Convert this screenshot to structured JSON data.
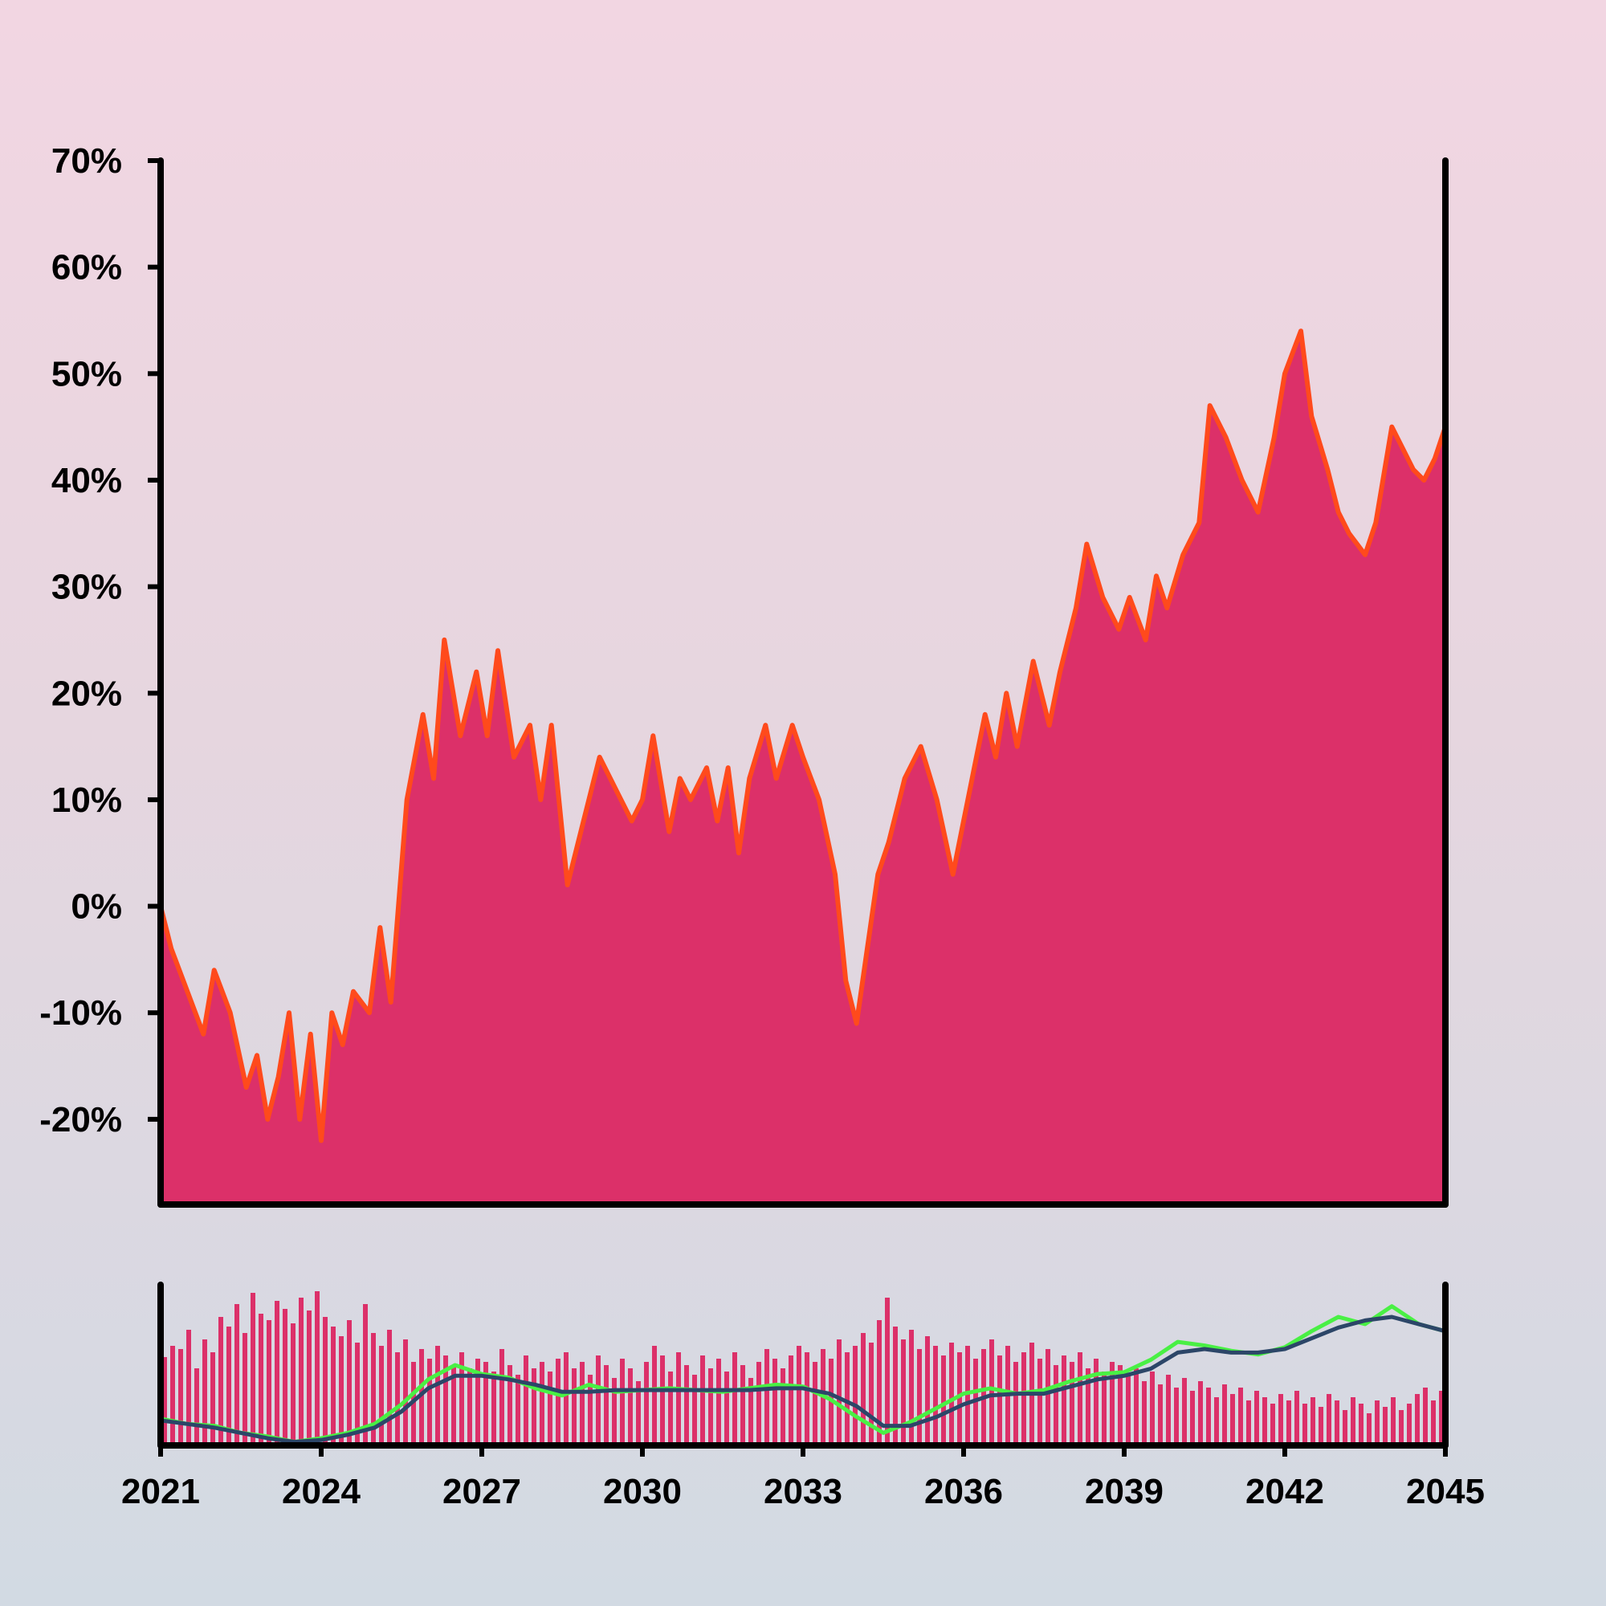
{
  "colors": {
    "area_fill": "#dc3069",
    "price_line": "#ff4a1c",
    "volume_bar": "#dc3069",
    "ma_fast": "#49f044",
    "ma_slow": "#2c4668",
    "axis": "#000000"
  },
  "chart_data": [
    {
      "type": "area",
      "panel": "main",
      "title": "",
      "xlabel": "",
      "ylabel": "",
      "ylim": [
        -28,
        70
      ],
      "xlim": [
        2021,
        2045
      ],
      "y_ticks": [
        -20,
        -10,
        0,
        10,
        20,
        30,
        40,
        50,
        60,
        70
      ],
      "y_tick_labels": [
        "-20%",
        "-10%",
        "0%",
        "10%",
        "20%",
        "30%",
        "40%",
        "50%",
        "60%",
        "70%"
      ],
      "grid": false,
      "series": [
        {
          "x": [
            2021.0,
            2021.2,
            2021.5,
            2021.8,
            2022.0,
            2022.3,
            2022.6,
            2022.8,
            2023.0,
            2023.2,
            2023.4,
            2023.6,
            2023.8,
            2024.0,
            2024.2,
            2024.4,
            2024.6,
            2024.9,
            2025.1,
            2025.3,
            2025.6,
            2025.9,
            2026.1,
            2026.3,
            2026.6,
            2026.9,
            2027.1,
            2027.3,
            2027.6,
            2027.9,
            2028.1,
            2028.3,
            2028.6,
            2028.9,
            2029.2,
            2029.5,
            2029.8,
            2030.0,
            2030.2,
            2030.5,
            2030.7,
            2030.9,
            2031.2,
            2031.4,
            2031.6,
            2031.8,
            2032.0,
            2032.3,
            2032.5,
            2032.8,
            2033.0,
            2033.3,
            2033.6,
            2033.8,
            2034.0,
            2034.2,
            2034.4,
            2034.6,
            2034.9,
            2035.2,
            2035.5,
            2035.8,
            2036.0,
            2036.2,
            2036.4,
            2036.6,
            2036.8,
            2037.0,
            2037.3,
            2037.6,
            2037.8,
            2038.1,
            2038.3,
            2038.6,
            2038.9,
            2039.1,
            2039.4,
            2039.6,
            2039.8,
            2040.1,
            2040.4,
            2040.6,
            2040.9,
            2041.2,
            2041.5,
            2041.8,
            2042.0,
            2042.3,
            2042.5,
            2042.8,
            2043.0,
            2043.2,
            2043.5,
            2043.7,
            2044.0,
            2044.2,
            2044.4,
            2044.6,
            2044.8,
            2045.0
          ],
          "y": [
            0,
            -4,
            -8,
            -12,
            -6,
            -10,
            -17,
            -14,
            -20,
            -16,
            -10,
            -20,
            -12,
            -22,
            -10,
            -13,
            -8,
            -10,
            -2,
            -9,
            10,
            18,
            12,
            25,
            16,
            22,
            16,
            24,
            14,
            17,
            10,
            17,
            2,
            8,
            14,
            11,
            8,
            10,
            16,
            7,
            12,
            10,
            13,
            8,
            13,
            5,
            12,
            17,
            12,
            17,
            14,
            10,
            3,
            -7,
            -11,
            -4,
            3,
            6,
            12,
            15,
            10,
            3,
            8,
            13,
            18,
            14,
            20,
            15,
            23,
            17,
            22,
            28,
            34,
            29,
            26,
            29,
            25,
            31,
            28,
            33,
            36,
            47,
            44,
            40,
            37,
            44,
            50,
            54,
            46,
            41,
            37,
            35,
            33,
            36,
            45,
            43,
            41,
            40,
            42,
            45
          ]
        }
      ]
    },
    {
      "type": "bar",
      "panel": "volume",
      "title": "",
      "xlabel": "",
      "ylabel": "",
      "xlim": [
        2021,
        2045
      ],
      "x_ticks": [
        2021,
        2024,
        2027,
        2030,
        2033,
        2036,
        2039,
        2042,
        2045
      ],
      "x_tick_labels": [
        "2021",
        "2024",
        "2027",
        "2030",
        "2033",
        "2036",
        "2039",
        "2042",
        "2045"
      ],
      "grid": false,
      "volume": [
        {
          "x": 2021.0,
          "v": 55
        },
        {
          "x": 2021.15,
          "v": 62
        },
        {
          "x": 2021.3,
          "v": 60
        },
        {
          "x": 2021.45,
          "v": 72
        },
        {
          "x": 2021.6,
          "v": 48
        },
        {
          "x": 2021.75,
          "v": 66
        },
        {
          "x": 2021.9,
          "v": 58
        },
        {
          "x": 2022.05,
          "v": 80
        },
        {
          "x": 2022.2,
          "v": 74
        },
        {
          "x": 2022.35,
          "v": 88
        },
        {
          "x": 2022.5,
          "v": 70
        },
        {
          "x": 2022.65,
          "v": 95
        },
        {
          "x": 2022.8,
          "v": 82
        },
        {
          "x": 2022.95,
          "v": 78
        },
        {
          "x": 2023.1,
          "v": 90
        },
        {
          "x": 2023.25,
          "v": 85
        },
        {
          "x": 2023.4,
          "v": 76
        },
        {
          "x": 2023.55,
          "v": 92
        },
        {
          "x": 2023.7,
          "v": 84
        },
        {
          "x": 2023.85,
          "v": 96
        },
        {
          "x": 2024.0,
          "v": 80
        },
        {
          "x": 2024.15,
          "v": 74
        },
        {
          "x": 2024.3,
          "v": 68
        },
        {
          "x": 2024.45,
          "v": 78
        },
        {
          "x": 2024.6,
          "v": 64
        },
        {
          "x": 2024.75,
          "v": 88
        },
        {
          "x": 2024.9,
          "v": 70
        },
        {
          "x": 2025.05,
          "v": 62
        },
        {
          "x": 2025.2,
          "v": 72
        },
        {
          "x": 2025.35,
          "v": 58
        },
        {
          "x": 2025.5,
          "v": 66
        },
        {
          "x": 2025.65,
          "v": 52
        },
        {
          "x": 2025.8,
          "v": 60
        },
        {
          "x": 2025.95,
          "v": 54
        },
        {
          "x": 2026.1,
          "v": 62
        },
        {
          "x": 2026.25,
          "v": 56
        },
        {
          "x": 2026.4,
          "v": 50
        },
        {
          "x": 2026.55,
          "v": 58
        },
        {
          "x": 2026.7,
          "v": 48
        },
        {
          "x": 2026.85,
          "v": 54
        },
        {
          "x": 2027.0,
          "v": 52
        },
        {
          "x": 2027.15,
          "v": 46
        },
        {
          "x": 2027.3,
          "v": 60
        },
        {
          "x": 2027.45,
          "v": 50
        },
        {
          "x": 2027.6,
          "v": 44
        },
        {
          "x": 2027.75,
          "v": 56
        },
        {
          "x": 2027.9,
          "v": 48
        },
        {
          "x": 2028.05,
          "v": 52
        },
        {
          "x": 2028.2,
          "v": 46
        },
        {
          "x": 2028.35,
          "v": 54
        },
        {
          "x": 2028.5,
          "v": 58
        },
        {
          "x": 2028.65,
          "v": 48
        },
        {
          "x": 2028.8,
          "v": 52
        },
        {
          "x": 2028.95,
          "v": 44
        },
        {
          "x": 2029.1,
          "v": 56
        },
        {
          "x": 2029.25,
          "v": 50
        },
        {
          "x": 2029.4,
          "v": 42
        },
        {
          "x": 2029.55,
          "v": 54
        },
        {
          "x": 2029.7,
          "v": 48
        },
        {
          "x": 2029.85,
          "v": 40
        },
        {
          "x": 2030.0,
          "v": 52
        },
        {
          "x": 2030.15,
          "v": 62
        },
        {
          "x": 2030.3,
          "v": 56
        },
        {
          "x": 2030.45,
          "v": 46
        },
        {
          "x": 2030.6,
          "v": 58
        },
        {
          "x": 2030.75,
          "v": 50
        },
        {
          "x": 2030.9,
          "v": 44
        },
        {
          "x": 2031.05,
          "v": 56
        },
        {
          "x": 2031.2,
          "v": 48
        },
        {
          "x": 2031.35,
          "v": 54
        },
        {
          "x": 2031.5,
          "v": 46
        },
        {
          "x": 2031.65,
          "v": 58
        },
        {
          "x": 2031.8,
          "v": 50
        },
        {
          "x": 2031.95,
          "v": 42
        },
        {
          "x": 2032.1,
          "v": 52
        },
        {
          "x": 2032.25,
          "v": 60
        },
        {
          "x": 2032.4,
          "v": 54
        },
        {
          "x": 2032.55,
          "v": 48
        },
        {
          "x": 2032.7,
          "v": 56
        },
        {
          "x": 2032.85,
          "v": 62
        },
        {
          "x": 2033.0,
          "v": 58
        },
        {
          "x": 2033.15,
          "v": 52
        },
        {
          "x": 2033.3,
          "v": 60
        },
        {
          "x": 2033.45,
          "v": 54
        },
        {
          "x": 2033.6,
          "v": 66
        },
        {
          "x": 2033.75,
          "v": 58
        },
        {
          "x": 2033.9,
          "v": 62
        },
        {
          "x": 2034.05,
          "v": 70
        },
        {
          "x": 2034.2,
          "v": 64
        },
        {
          "x": 2034.35,
          "v": 78
        },
        {
          "x": 2034.5,
          "v": 92
        },
        {
          "x": 2034.65,
          "v": 74
        },
        {
          "x": 2034.8,
          "v": 66
        },
        {
          "x": 2034.95,
          "v": 72
        },
        {
          "x": 2035.1,
          "v": 60
        },
        {
          "x": 2035.25,
          "v": 68
        },
        {
          "x": 2035.4,
          "v": 62
        },
        {
          "x": 2035.55,
          "v": 56
        },
        {
          "x": 2035.7,
          "v": 64
        },
        {
          "x": 2035.85,
          "v": 58
        },
        {
          "x": 2036.0,
          "v": 62
        },
        {
          "x": 2036.15,
          "v": 54
        },
        {
          "x": 2036.3,
          "v": 60
        },
        {
          "x": 2036.45,
          "v": 66
        },
        {
          "x": 2036.6,
          "v": 56
        },
        {
          "x": 2036.75,
          "v": 62
        },
        {
          "x": 2036.9,
          "v": 52
        },
        {
          "x": 2037.05,
          "v": 58
        },
        {
          "x": 2037.2,
          "v": 64
        },
        {
          "x": 2037.35,
          "v": 54
        },
        {
          "x": 2037.5,
          "v": 60
        },
        {
          "x": 2037.65,
          "v": 50
        },
        {
          "x": 2037.8,
          "v": 56
        },
        {
          "x": 2037.95,
          "v": 52
        },
        {
          "x": 2038.1,
          "v": 58
        },
        {
          "x": 2038.25,
          "v": 48
        },
        {
          "x": 2038.4,
          "v": 54
        },
        {
          "x": 2038.55,
          "v": 46
        },
        {
          "x": 2038.7,
          "v": 52
        },
        {
          "x": 2038.85,
          "v": 50
        },
        {
          "x": 2039.0,
          "v": 44
        },
        {
          "x": 2039.15,
          "v": 48
        },
        {
          "x": 2039.3,
          "v": 40
        },
        {
          "x": 2039.45,
          "v": 46
        },
        {
          "x": 2039.6,
          "v": 38
        },
        {
          "x": 2039.75,
          "v": 44
        },
        {
          "x": 2039.9,
          "v": 36
        },
        {
          "x": 2040.05,
          "v": 42
        },
        {
          "x": 2040.2,
          "v": 34
        },
        {
          "x": 2040.35,
          "v": 40
        },
        {
          "x": 2040.5,
          "v": 36
        },
        {
          "x": 2040.65,
          "v": 30
        },
        {
          "x": 2040.8,
          "v": 38
        },
        {
          "x": 2040.95,
          "v": 32
        },
        {
          "x": 2041.1,
          "v": 36
        },
        {
          "x": 2041.25,
          "v": 28
        },
        {
          "x": 2041.4,
          "v": 34
        },
        {
          "x": 2041.55,
          "v": 30
        },
        {
          "x": 2041.7,
          "v": 26
        },
        {
          "x": 2041.85,
          "v": 32
        },
        {
          "x": 2042.0,
          "v": 28
        },
        {
          "x": 2042.15,
          "v": 34
        },
        {
          "x": 2042.3,
          "v": 26
        },
        {
          "x": 2042.45,
          "v": 30
        },
        {
          "x": 2042.6,
          "v": 24
        },
        {
          "x": 2042.75,
          "v": 32
        },
        {
          "x": 2042.9,
          "v": 28
        },
        {
          "x": 2043.05,
          "v": 22
        },
        {
          "x": 2043.2,
          "v": 30
        },
        {
          "x": 2043.35,
          "v": 26
        },
        {
          "x": 2043.5,
          "v": 20
        },
        {
          "x": 2043.65,
          "v": 28
        },
        {
          "x": 2043.8,
          "v": 24
        },
        {
          "x": 2043.95,
          "v": 30
        },
        {
          "x": 2044.1,
          "v": 22
        },
        {
          "x": 2044.25,
          "v": 26
        },
        {
          "x": 2044.4,
          "v": 32
        },
        {
          "x": 2044.55,
          "v": 36
        },
        {
          "x": 2044.7,
          "v": 28
        },
        {
          "x": 2044.85,
          "v": 34
        }
      ],
      "ma_fast": {
        "x": [
          2021.0,
          2021.5,
          2022.0,
          2022.5,
          2023.0,
          2023.5,
          2024.0,
          2024.5,
          2025.0,
          2025.5,
          2026.0,
          2026.5,
          2027.0,
          2027.5,
          2028.0,
          2028.5,
          2029.0,
          2029.5,
          2030.0,
          2030.5,
          2031.0,
          2031.5,
          2032.0,
          2032.5,
          2033.0,
          2033.5,
          2034.0,
          2034.5,
          2035.0,
          2035.5,
          2036.0,
          2036.5,
          2037.0,
          2037.5,
          2038.0,
          2038.5,
          2039.0,
          2039.5,
          2040.0,
          2040.5,
          2041.0,
          2041.5,
          2042.0,
          2042.5,
          2043.0,
          2043.5,
          2044.0,
          2044.5,
          2045.0
        ],
        "y": [
          -5,
          -8,
          -9,
          -13,
          -15,
          -18,
          -16,
          -13,
          -8,
          3,
          17,
          25,
          20,
          18,
          12,
          8,
          14,
          10,
          11,
          12,
          11,
          10,
          12,
          14,
          13,
          6,
          -4,
          -13,
          -7,
          1,
          9,
          12,
          9,
          11,
          16,
          20,
          21,
          28,
          38,
          36,
          33,
          31,
          35,
          44,
          52,
          48,
          58,
          48,
          44
        ]
      },
      "ma_slow": {
        "x": [
          2021.0,
          2021.5,
          2022.0,
          2022.5,
          2023.0,
          2023.5,
          2024.0,
          2024.5,
          2025.0,
          2025.5,
          2026.0,
          2026.5,
          2027.0,
          2027.5,
          2028.0,
          2028.5,
          2029.0,
          2029.5,
          2030.0,
          2030.5,
          2031.0,
          2031.5,
          2032.0,
          2032.5,
          2033.0,
          2033.5,
          2034.0,
          2034.5,
          2035.0,
          2035.5,
          2036.0,
          2036.5,
          2037.0,
          2037.5,
          2038.0,
          2038.5,
          2039.0,
          2039.5,
          2040.0,
          2040.5,
          2041.0,
          2041.5,
          2042.0,
          2042.5,
          2043.0,
          2043.5,
          2044.0,
          2044.5,
          2045.0
        ],
        "y": [
          -6,
          -8,
          -10,
          -13,
          -16,
          -18,
          -17,
          -14,
          -10,
          -1,
          12,
          19,
          19,
          17,
          14,
          10,
          10,
          11,
          11,
          11,
          11,
          11,
          11,
          12,
          12,
          9,
          2,
          -9,
          -9,
          -4,
          3,
          8,
          9,
          9,
          13,
          17,
          19,
          23,
          32,
          34,
          32,
          32,
          34,
          40,
          46,
          50,
          52,
          48,
          44
        ]
      }
    }
  ]
}
